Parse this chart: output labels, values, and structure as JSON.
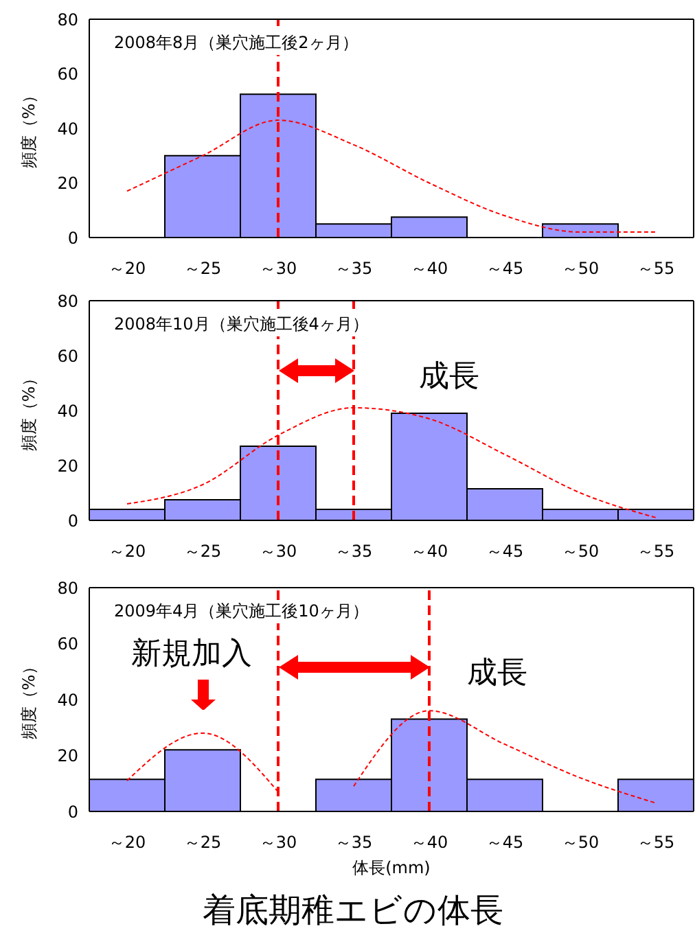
{
  "chart_data": [
    {
      "type": "bar",
      "title": "2008年8月（巣穴施工後2ヶ月）",
      "ylabel": "頻度（%）",
      "categories": [
        "～20",
        "～25",
        "～30",
        "～35",
        "～40",
        "～45",
        "～50",
        "～55"
      ],
      "series": [
        {
          "color": "#9999ff",
          "values": [
            0,
            30,
            52.5,
            5,
            7.5,
            0,
            5,
            0
          ]
        },
        {
          "type": "line",
          "color": "#ff0000",
          "line_style": "dashed",
          "values": [
            17,
            30,
            43,
            34,
            20,
            8,
            2,
            2
          ]
        }
      ],
      "ylim": [
        0,
        80
      ],
      "yticks": [
        0,
        20,
        40,
        60,
        80
      ],
      "marker": "none",
      "ref_lines": [
        {
          "axis": "x",
          "value": "～30",
          "color": "#ff0000",
          "line_style": "dashed"
        }
      ]
    },
    {
      "type": "bar",
      "title": "2008年10月（巣穴施工後4ヶ月）",
      "ylabel": "頻度（%）",
      "categories": [
        "～20",
        "～25",
        "～30",
        "～35",
        "～40",
        "～45",
        "～50",
        "～55"
      ],
      "series": [
        {
          "color": "#9999ff",
          "values": [
            4,
            7.5,
            27,
            4,
            39,
            11.5,
            4,
            4
          ]
        },
        {
          "type": "line",
          "color": "#ff0000",
          "line_style": "dashed",
          "values": [
            6,
            13,
            31,
            41,
            37,
            24,
            10,
            1
          ]
        }
      ],
      "ylim": [
        0,
        80
      ],
      "yticks": [
        0,
        20,
        40,
        60,
        80
      ],
      "marker": "none",
      "ref_lines": [
        {
          "axis": "x",
          "value": "～30",
          "color": "#ff0000",
          "line_style": "dashed"
        },
        {
          "axis": "x",
          "value": "～35",
          "color": "#ff0000",
          "line_style": "dashed"
        }
      ],
      "annotations": [
        "成長"
      ]
    },
    {
      "type": "bar",
      "title": "2009年4月（巣穴施工後10ヶ月）",
      "ylabel": "頻度（%）",
      "xlabel": "体長(mm)",
      "categories": [
        "～20",
        "～25",
        "～30",
        "～35",
        "～40",
        "～45",
        "～50",
        "～55"
      ],
      "series": [
        {
          "color": "#9999ff",
          "values": [
            11.5,
            22,
            0,
            11.5,
            33,
            11.5,
            0,
            11.5
          ]
        },
        {
          "type": "line",
          "color": "#ff0000",
          "line_style": "dashed",
          "values": [
            11,
            28,
            7,
            null,
            null,
            null,
            null,
            null
          ]
        },
        {
          "type": "line",
          "color": "#ff0000",
          "line_style": "dashed",
          "values": [
            null,
            null,
            null,
            9,
            36,
            24,
            12,
            3
          ]
        }
      ],
      "ylim": [
        0,
        80
      ],
      "yticks": [
        0,
        20,
        40,
        60,
        80
      ],
      "marker": "none",
      "ref_lines": [
        {
          "axis": "x",
          "value": "～30",
          "color": "#ff0000",
          "line_style": "dashed"
        },
        {
          "axis": "x",
          "value": "～40",
          "color": "#ff0000",
          "line_style": "dashed"
        }
      ],
      "annotations": [
        "新規加入",
        "成長",
        "着底期稚エビの体長"
      ]
    }
  ]
}
